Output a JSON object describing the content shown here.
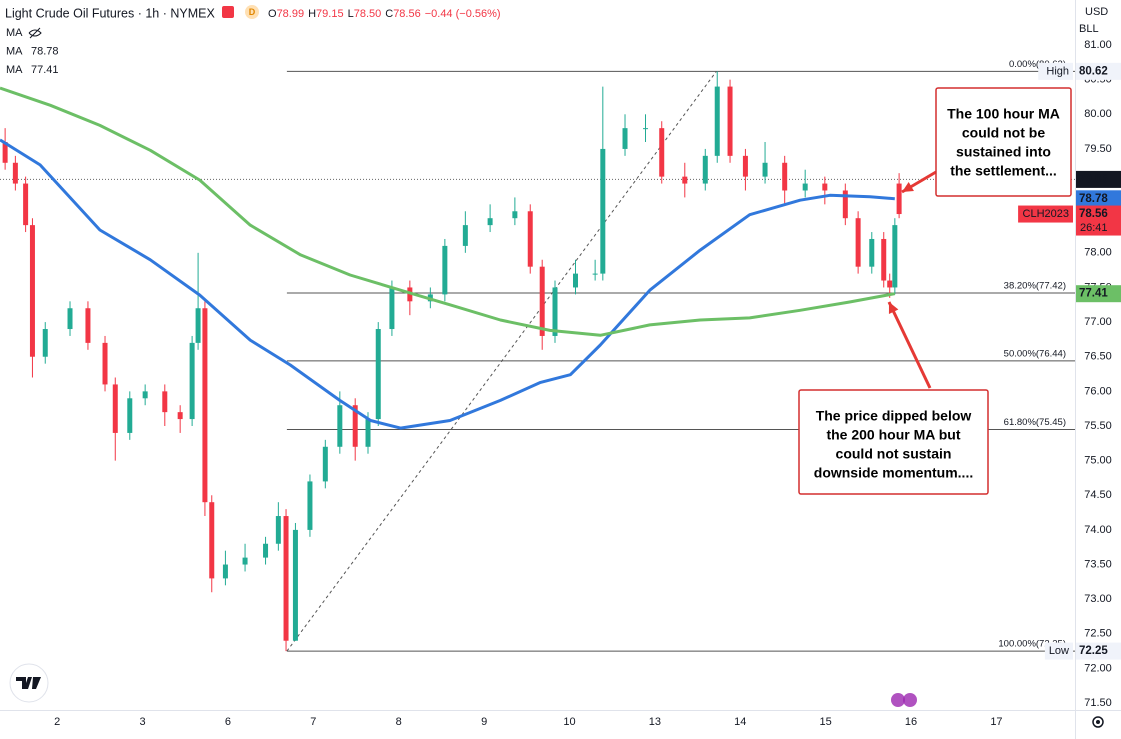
{
  "chart_data": {
    "type": "candlestick",
    "title": "Light Crude Oil Futures · 1h · NYMEX",
    "quote": [
      {
        "key": "O",
        "text": "78.99"
      },
      {
        "key": "H",
        "text": "79.15"
      },
      {
        "key": "L",
        "text": "78.50"
      },
      {
        "key": "C",
        "text": "78.56"
      }
    ],
    "change": "−0.44 (−0.56%)",
    "currency": "USD",
    "unit": "BLL",
    "up_color": "#22ab94",
    "down_color": "#f23645",
    "x": [
      0.39,
      0.51,
      0.63,
      0.71,
      0.86,
      1.15,
      1.36,
      1.56,
      1.68,
      1.85,
      2.03,
      2.26,
      2.44,
      2.58,
      2.65,
      2.73,
      2.81,
      2.97,
      3.2,
      3.44,
      3.59,
      3.68,
      3.79,
      3.96,
      4.14,
      4.31,
      4.49,
      4.64,
      4.76,
      4.92,
      5.13,
      5.37,
      5.54,
      5.78,
      6.07,
      6.36,
      6.54,
      6.68,
      6.83,
      7.07,
      7.3,
      7.39,
      7.65,
      7.89,
      8.08,
      8.35,
      8.59,
      8.73,
      8.88,
      9.06,
      9.29,
      9.52,
      9.76,
      9.99,
      10.23,
      10.38,
      10.54,
      10.68,
      10.75,
      10.81,
      10.86
    ],
    "open": [
      79.6,
      79.3,
      79.0,
      78.4,
      76.5,
      76.9,
      77.2,
      76.7,
      76.1,
      75.4,
      75.9,
      76.0,
      75.7,
      75.6,
      76.7,
      77.2,
      74.4,
      73.3,
      73.5,
      73.6,
      73.8,
      74.2,
      72.4,
      74.0,
      74.7,
      75.2,
      75.8,
      75.2,
      75.6,
      76.9,
      77.5,
      77.3,
      77.4,
      78.1,
      78.4,
      78.5,
      78.6,
      77.8,
      76.8,
      77.5,
      77.7,
      77.7,
      79.5,
      79.8,
      79.8,
      79.1,
      79.0,
      79.4,
      80.4,
      79.4,
      79.1,
      79.3,
      78.9,
      79.0,
      78.9,
      78.5,
      77.8,
      78.2,
      77.6,
      77.5,
      79.0
    ],
    "high": [
      79.8,
      79.4,
      79.1,
      78.5,
      77.0,
      77.3,
      77.3,
      76.8,
      76.2,
      76.0,
      76.1,
      76.1,
      75.8,
      76.8,
      78.0,
      77.3,
      74.5,
      73.7,
      73.8,
      73.9,
      74.4,
      74.3,
      74.1,
      74.8,
      75.3,
      76.0,
      75.9,
      75.7,
      77.0,
      77.6,
      77.6,
      77.5,
      78.2,
      78.6,
      78.7,
      78.8,
      78.7,
      77.9,
      77.6,
      77.9,
      77.9,
      80.4,
      80.0,
      80.0,
      79.9,
      79.3,
      79.5,
      80.62,
      80.5,
      79.5,
      79.6,
      79.4,
      79.2,
      79.1,
      79.0,
      78.6,
      78.3,
      78.3,
      77.7,
      78.5,
      79.15
    ],
    "low": [
      79.2,
      78.9,
      78.3,
      76.2,
      76.4,
      76.8,
      76.6,
      76.0,
      75.0,
      75.3,
      75.8,
      75.5,
      75.4,
      75.5,
      76.6,
      74.2,
      73.1,
      73.2,
      73.4,
      73.5,
      73.7,
      72.25,
      72.4,
      73.9,
      74.6,
      75.1,
      75.0,
      75.1,
      75.5,
      76.8,
      77.1,
      77.2,
      77.3,
      78.0,
      78.3,
      78.4,
      77.7,
      76.6,
      76.7,
      77.4,
      77.6,
      77.6,
      79.4,
      79.6,
      79.0,
      78.8,
      78.9,
      79.3,
      79.3,
      78.9,
      79.0,
      78.7,
      78.8,
      78.7,
      78.4,
      77.7,
      77.7,
      77.5,
      77.35,
      77.4,
      78.5
    ],
    "close": [
      79.3,
      79.0,
      78.4,
      76.5,
      76.9,
      77.2,
      76.7,
      76.1,
      75.4,
      75.9,
      76.0,
      75.7,
      75.6,
      76.7,
      77.2,
      74.4,
      73.3,
      73.5,
      73.6,
      73.8,
      74.2,
      72.4,
      74.0,
      74.7,
      75.2,
      75.8,
      75.2,
      75.6,
      76.9,
      77.5,
      77.3,
      77.4,
      78.1,
      78.4,
      78.5,
      78.6,
      77.8,
      76.8,
      77.5,
      77.7,
      77.7,
      79.5,
      79.8,
      79.8,
      79.1,
      79.0,
      79.4,
      80.4,
      79.4,
      79.1,
      79.3,
      78.9,
      79.0,
      78.9,
      78.5,
      77.8,
      78.2,
      77.6,
      77.5,
      78.4,
      78.56
    ],
    "moving_averages": [
      {
        "name": "MA"
      },
      {
        "name": "MA",
        "value_label": "78.78",
        "color": "#3178dc",
        "x": [
          0.33,
          0.8,
          1.5,
          2.09,
          2.67,
          3.26,
          3.73,
          4.31,
          4.67,
          5.02,
          5.6,
          6.19,
          6.66,
          7.01,
          7.36,
          7.94,
          8.53,
          9.11,
          9.7,
          10.05,
          10.52,
          10.81
        ],
        "values": [
          79.63,
          79.27,
          78.33,
          77.9,
          77.39,
          76.74,
          76.38,
          75.87,
          75.58,
          75.47,
          75.58,
          75.87,
          76.13,
          76.24,
          76.67,
          77.46,
          78.04,
          78.55,
          78.76,
          78.83,
          78.81,
          78.78
        ]
      },
      {
        "name": "MA",
        "value_label": "77.41",
        "color": "#6cbf66",
        "x": [
          0.33,
          0.92,
          1.5,
          2.09,
          2.67,
          3.26,
          3.85,
          4.43,
          5.02,
          5.6,
          6.19,
          6.77,
          7.36,
          7.94,
          8.53,
          9.11,
          9.7,
          10.28,
          10.81
        ],
        "values": [
          80.38,
          80.13,
          79.84,
          79.48,
          79.05,
          78.4,
          77.97,
          77.68,
          77.46,
          77.25,
          77.03,
          76.88,
          76.81,
          76.96,
          77.03,
          77.06,
          77.17,
          77.29,
          77.41
        ]
      }
    ],
    "fib_start_x": 3.69,
    "fib_levels": [
      {
        "value": 80.62,
        "label": "0.00%(80.62)"
      },
      {
        "value": 77.42,
        "label": "38.20%(77.42)"
      },
      {
        "value": 76.44,
        "label": "50.00%(76.44)"
      },
      {
        "value": 75.45,
        "label": "61.80%(75.45)"
      },
      {
        "value": 72.25,
        "label": "100.00%(72.25)"
      }
    ],
    "trend_line": {
      "x": [
        3.69,
        8.72
      ],
      "values": [
        72.25,
        80.62
      ]
    },
    "last_line": 79.06,
    "price_labels": [
      {
        "value": 80.62,
        "tag": "High",
        "style": "plain"
      },
      {
        "value": 79.06,
        "style": "dark"
      },
      {
        "value": 78.78,
        "style": "blue"
      },
      {
        "value": 78.56,
        "tag": "CLH2023",
        "sub": "26:41",
        "style": "red"
      },
      {
        "value": 77.41,
        "style": "green"
      },
      {
        "value": 72.25,
        "tag": "Low",
        "style": "plain"
      }
    ],
    "annotations": [
      {
        "lines": [
          "The 100 hour MA",
          "could not be",
          "sustained into",
          "the settlement..."
        ]
      },
      {
        "lines": [
          "The price dipped below",
          "the 200 hour MA but",
          "could not sustain",
          "downside momentum...."
        ]
      }
    ],
    "xlim": [
      0.33,
      12.92
    ],
    "ylim": [
      71.4,
      81.65
    ],
    "xticks": [
      {
        "value": 1,
        "label": "2"
      },
      {
        "value": 2,
        "label": "3"
      },
      {
        "value": 3,
        "label": "6"
      },
      {
        "value": 4,
        "label": "7"
      },
      {
        "value": 5,
        "label": "8"
      },
      {
        "value": 6,
        "label": "9"
      },
      {
        "value": 7,
        "label": "10"
      },
      {
        "value": 8,
        "label": "13"
      },
      {
        "value": 9,
        "label": "14"
      },
      {
        "value": 10,
        "label": "15"
      },
      {
        "value": 11,
        "label": "16"
      },
      {
        "value": 12,
        "label": "17"
      }
    ],
    "yticks": [
      {
        "value": 81,
        "label": "81.00"
      },
      {
        "value": 80.5,
        "label": "80.50"
      },
      {
        "value": 80,
        "label": "80.00"
      },
      {
        "value": 79.5,
        "label": "79.50"
      },
      {
        "value": 79,
        "label": "79.00"
      },
      {
        "value": 78.5,
        "label": "78.50"
      },
      {
        "value": 78,
        "label": "78.00"
      },
      {
        "value": 77.5,
        "label": "77.50"
      },
      {
        "value": 77,
        "label": "77.00"
      },
      {
        "value": 76.5,
        "label": "76.50"
      },
      {
        "value": 76,
        "label": "76.00"
      },
      {
        "value": 75.5,
        "label": "75.50"
      },
      {
        "value": 75,
        "label": "75.00"
      },
      {
        "value": 74.5,
        "label": "74.50"
      },
      {
        "value": 74,
        "label": "74.00"
      },
      {
        "value": 73.5,
        "label": "73.50"
      },
      {
        "value": 73,
        "label": "73.00"
      },
      {
        "value": 72.5,
        "label": "72.50"
      },
      {
        "value": 72,
        "label": "72.00"
      },
      {
        "value": 71.5,
        "label": "71.50"
      }
    ],
    "grid": false
  }
}
